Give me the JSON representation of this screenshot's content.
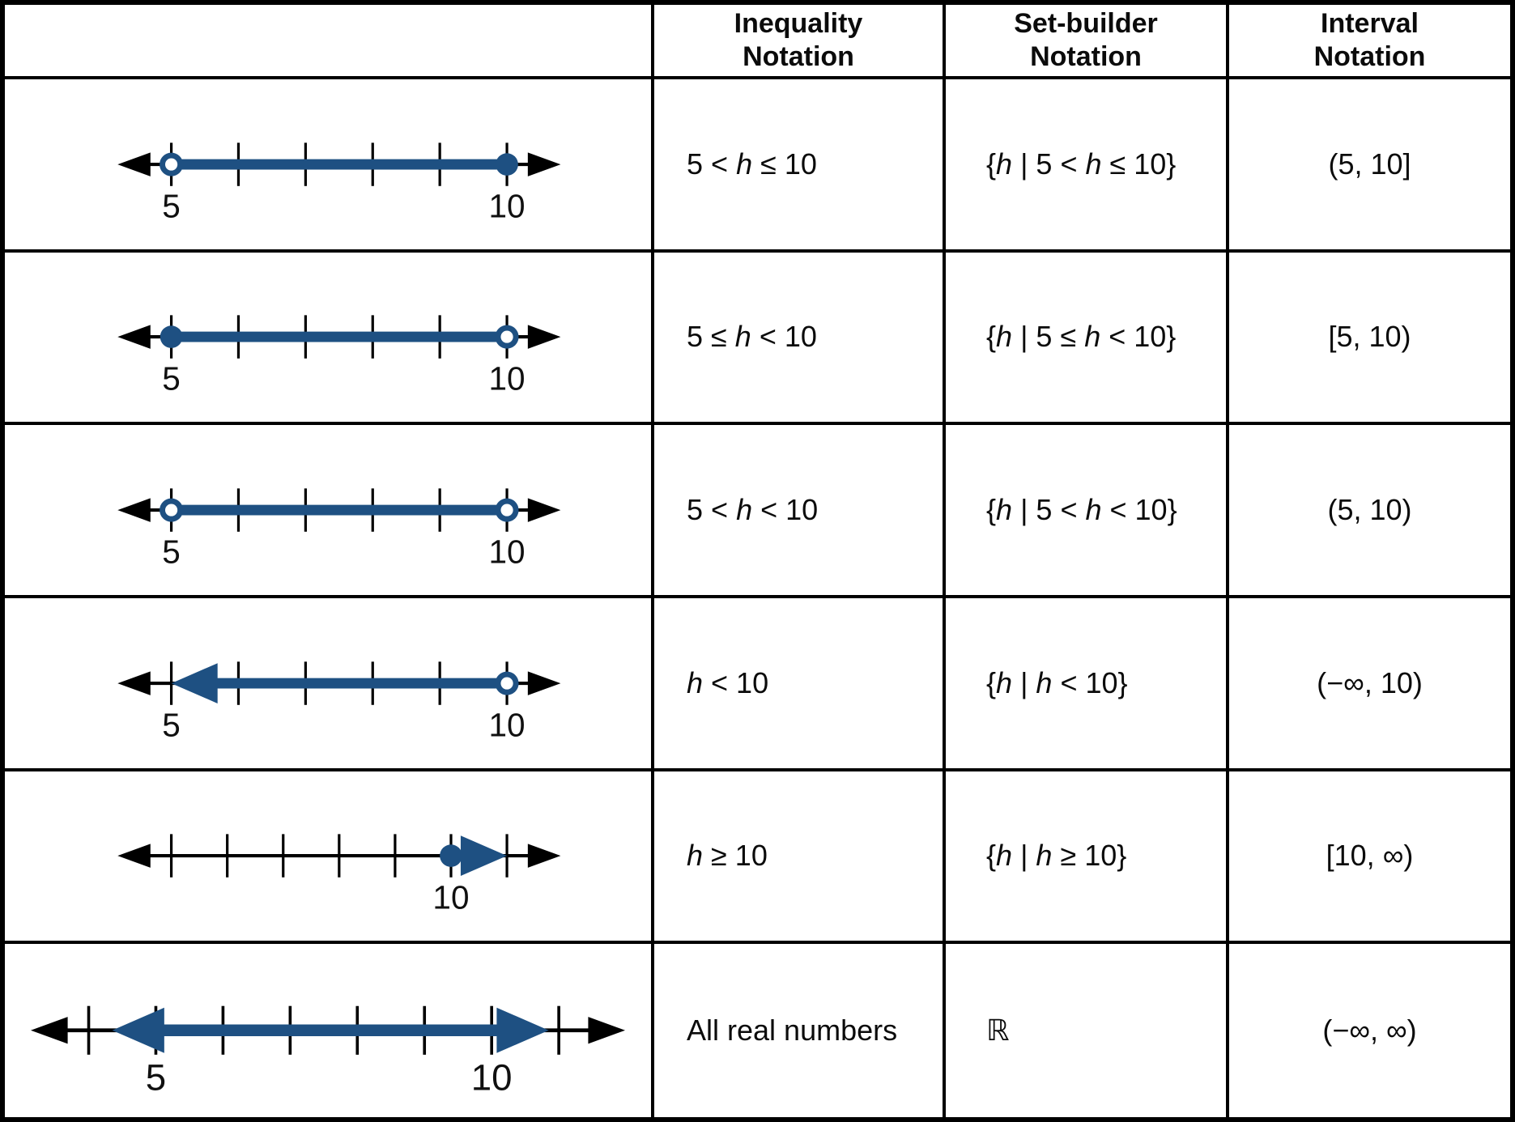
{
  "colors": {
    "blue": "#1e5082",
    "black": "#000000"
  },
  "headers": {
    "inequality": "Inequality Notation",
    "set_builder": "Set-builder Notation",
    "interval": "Interval Notation"
  },
  "rows": [
    {
      "inequality": "5 < h ≤ 10",
      "set_builder": "{h | 5 < h ≤ 10}",
      "interval": "(5, 10]",
      "number_line": {
        "variant": "normal",
        "ticks": 6,
        "blue_from": 0,
        "blue_to": 5,
        "left_cap": "open",
        "right_cap": "closed",
        "labels": [
          {
            "tick": 0,
            "text": "5"
          },
          {
            "tick": 5,
            "text": "10"
          }
        ]
      }
    },
    {
      "inequality": "5 ≤ h < 10",
      "set_builder": "{h | 5 ≤ h < 10}",
      "interval": "[5, 10)",
      "number_line": {
        "variant": "normal",
        "ticks": 6,
        "blue_from": 0,
        "blue_to": 5,
        "left_cap": "closed",
        "right_cap": "open",
        "labels": [
          {
            "tick": 0,
            "text": "5"
          },
          {
            "tick": 5,
            "text": "10"
          }
        ]
      }
    },
    {
      "inequality": "5 < h < 10",
      "set_builder": "{h | 5 < h < 10}",
      "interval": "(5, 10)",
      "number_line": {
        "variant": "normal",
        "ticks": 6,
        "blue_from": 0,
        "blue_to": 5,
        "left_cap": "open",
        "right_cap": "open",
        "labels": [
          {
            "tick": 0,
            "text": "5"
          },
          {
            "tick": 5,
            "text": "10"
          }
        ]
      }
    },
    {
      "inequality": "h < 10",
      "set_builder": "{h | h < 10}",
      "interval": "(−∞, 10)",
      "number_line": {
        "variant": "normal",
        "ticks": 6,
        "blue_from": 0,
        "blue_to": 5,
        "left_cap": "arrow",
        "right_cap": "open",
        "labels": [
          {
            "tick": 0,
            "text": "5"
          },
          {
            "tick": 5,
            "text": "10"
          }
        ]
      }
    },
    {
      "inequality": "h ≥ 10",
      "set_builder": "{h | h ≥ 10}",
      "interval": "[10, ∞)",
      "number_line": {
        "variant": "seven",
        "ticks": 7,
        "blue_from": 5,
        "blue_to": 6,
        "left_cap": "closed",
        "right_cap": "arrow",
        "labels": [
          {
            "tick": 5,
            "text": "10"
          }
        ]
      }
    },
    {
      "inequality": "All real numbers",
      "set_builder": "ℝ",
      "interval": "(−∞, ∞)",
      "number_line": {
        "variant": "wide",
        "ticks": 8,
        "blue_from": 0.35,
        "blue_to": 6.85,
        "left_cap": "arrow",
        "right_cap": "arrow",
        "labels": [
          {
            "tick": 1,
            "text": "5"
          },
          {
            "tick": 6,
            "text": "10"
          }
        ]
      }
    }
  ]
}
